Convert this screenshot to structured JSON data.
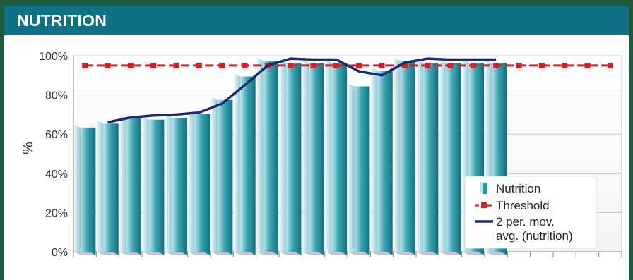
{
  "header": {
    "title": "NUTRITION"
  },
  "colors": {
    "header_bg": "#0f7186",
    "page_border": "#1f5a3a",
    "bar": "#2a96a6",
    "threshold": "#d11f26",
    "moving_avg": "#1e2a6e"
  },
  "chart_data": {
    "type": "bar",
    "categories": [
      "",
      "",
      "",
      "",
      "",
      "",
      "",
      "",
      "",
      "",
      "",
      "",
      "",
      "",
      "",
      "",
      "",
      "",
      "",
      "",
      "",
      "",
      "",
      ""
    ],
    "values": [
      65,
      67,
      70,
      69,
      70,
      72,
      79,
      91,
      99,
      98,
      98,
      98,
      86,
      94,
      99,
      98,
      98,
      98,
      98,
      null,
      null,
      null,
      null,
      null
    ],
    "series": [
      {
        "name": "Nutrition",
        "type": "bar",
        "values": [
          65,
          67,
          70,
          69,
          70,
          72,
          79,
          91,
          99,
          98,
          98,
          98,
          86,
          94,
          99,
          98,
          98,
          98,
          98,
          null,
          null,
          null,
          null,
          null
        ]
      },
      {
        "name": "Threshold",
        "type": "line",
        "values": [
          95,
          95,
          95,
          95,
          95,
          95,
          95,
          95,
          95,
          95,
          95,
          95,
          95,
          95,
          95,
          95,
          95,
          95,
          95,
          95,
          95,
          95,
          95,
          95
        ]
      },
      {
        "name": "2 per. mov. avg. (nutrition)",
        "type": "line",
        "values": [
          null,
          66,
          68.5,
          69.5,
          70,
          71,
          75.5,
          85,
          95,
          98.5,
          98,
          98,
          92,
          90,
          96.5,
          98.5,
          98,
          98,
          98,
          null,
          null,
          null,
          null,
          null
        ]
      }
    ],
    "legend": {
      "entries": [
        "Nutrition",
        "Threshold",
        "2 per. mov.",
        "avg. (nutrition)"
      ],
      "placement": "bottom-right"
    },
    "title": "",
    "xlabel": "",
    "ylabel": "%",
    "ylim": [
      0,
      100
    ],
    "yticks": [
      "0%",
      "20%",
      "40%",
      "60%",
      "80%",
      "100%"
    ],
    "grid": true
  }
}
